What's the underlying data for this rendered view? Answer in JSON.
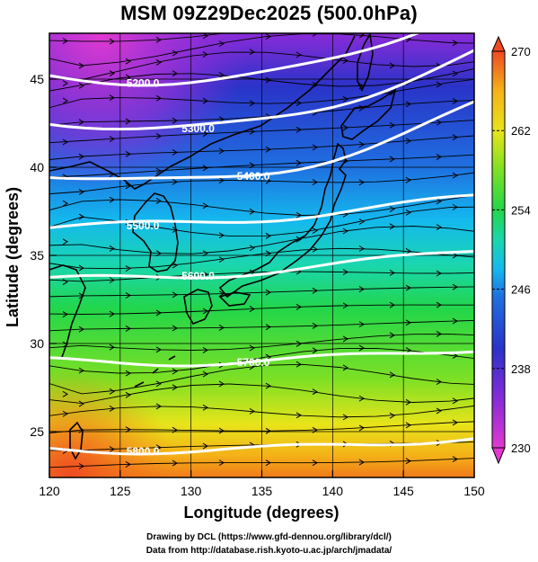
{
  "title": "MSM 09Z29Dec2025 (500.0hPa)",
  "credits": {
    "line1": "Drawing by DCL (https://www.gfd-dennou.org/library/dcl/)",
    "line2": "Data from http://database.rish.kyoto-u.ac.jp/arch/jmadata/"
  },
  "axes": {
    "xlabel": "Longitude (degrees)",
    "ylabel": "Latitude  (degrees)",
    "xlim": [
      120,
      150
    ],
    "ylim": [
      22.4,
      47.6
    ],
    "xticks": [
      "120",
      "125",
      "130",
      "135",
      "140",
      "145",
      "150"
    ],
    "yticks": [
      "25",
      "30",
      "35",
      "40",
      "45"
    ]
  },
  "colorbar": {
    "range": [
      230,
      270
    ],
    "tick_labels": [
      "270",
      "262",
      "254",
      "246",
      "238",
      "230"
    ],
    "colors": [
      "#e03ad0",
      "#8a2bd8",
      "#2a33c8",
      "#1f6fe0",
      "#14b8ee",
      "#1ad6b0",
      "#22d64a",
      "#7ee024",
      "#e8e41a",
      "#f4b218",
      "#f07a1a",
      "#ef4a22"
    ]
  },
  "height_contours": [
    {
      "label": "5200.0",
      "lat": 45.2
    },
    {
      "label": "5300.0",
      "lat": 42.6
    },
    {
      "label": "5400.0",
      "lat": 39.6
    },
    {
      "label": "5500.0",
      "lat": 36.6
    },
    {
      "label": "5600.0",
      "lat": 33.6
    },
    {
      "label": "5700.0",
      "lat": 29.0
    },
    {
      "label": "5800.0",
      "lat": 24.0
    }
  ]
}
